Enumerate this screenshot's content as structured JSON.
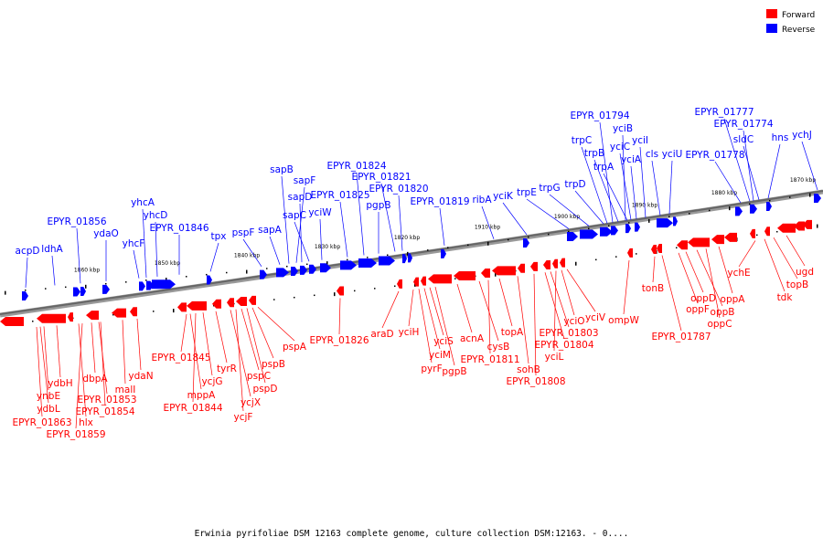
{
  "legend": {
    "forward_label": "Forward",
    "reverse_label": "Reverse",
    "forward_color": "#ff0000",
    "reverse_color": "#0000ff"
  },
  "caption": "Erwinia pyrifoliae DSM 12163 complete genome, culture collection DSM:12163. - 0....",
  "ticks": [
    "1860 kbp",
    "1850 kbp",
    "1840 kbp",
    "1830 kbp",
    "1820 kbp",
    "1910 kbp",
    "1900 kbp",
    "1890 kbp",
    "1880 kbp",
    "1870 kbp"
  ],
  "reverse_labels": [
    "acpD",
    "ldhA",
    "EPYR_01856",
    "ydaO",
    "yhcF",
    "yhcA",
    "yhcD",
    "EPYR_01846",
    "tpx",
    "pspF",
    "sapA",
    "sapB",
    "sapF",
    "sapD",
    "sapC",
    "yciW",
    "EPYR_01825",
    "EPYR_01824",
    "EPYR_01821",
    "EPYR_01820",
    "pgpB",
    "EPYR_01819",
    "ribA",
    "yciK",
    "trpE",
    "trpG",
    "trpD",
    "trpC",
    "EPYR_01794",
    "trpB",
    "yciB",
    "trpA",
    "yciC",
    "yciA",
    "yciI",
    "cls",
    "yciU",
    "EPYR_01778",
    "EPYR_01777",
    "EPYR_01774",
    "sldC",
    "hns",
    "ychJ"
  ],
  "forward_labels": [
    "ynbE",
    "ydbL",
    "ydbH",
    "EPYR_01863",
    "hlx",
    "EPYR_01859",
    "dbpA",
    "EPYR_01853",
    "EPYR_01854",
    "malI",
    "ydaN",
    "EPYR_01845",
    "mppA",
    "EPYR_01844",
    "ycjG",
    "tyrR",
    "ycjX",
    "ycjF",
    "pspC",
    "pspD",
    "pspB",
    "pspA",
    "EPYR_01826",
    "araD",
    "yciH",
    "pyrF",
    "yciM",
    "yciS",
    "pgpB",
    "acnA",
    "cysB",
    "EPYR_01811",
    "topA",
    "sohB",
    "EPYR_01808",
    "EPYR_01804",
    "EPYR_01803",
    "yciL",
    "yciO",
    "yciV",
    "ompW",
    "tonB",
    "EPYR_01787",
    "oppF",
    "oppD",
    "oppB",
    "oppC",
    "oppA",
    "ychE",
    "tdk",
    "topB",
    "ugd"
  ]
}
